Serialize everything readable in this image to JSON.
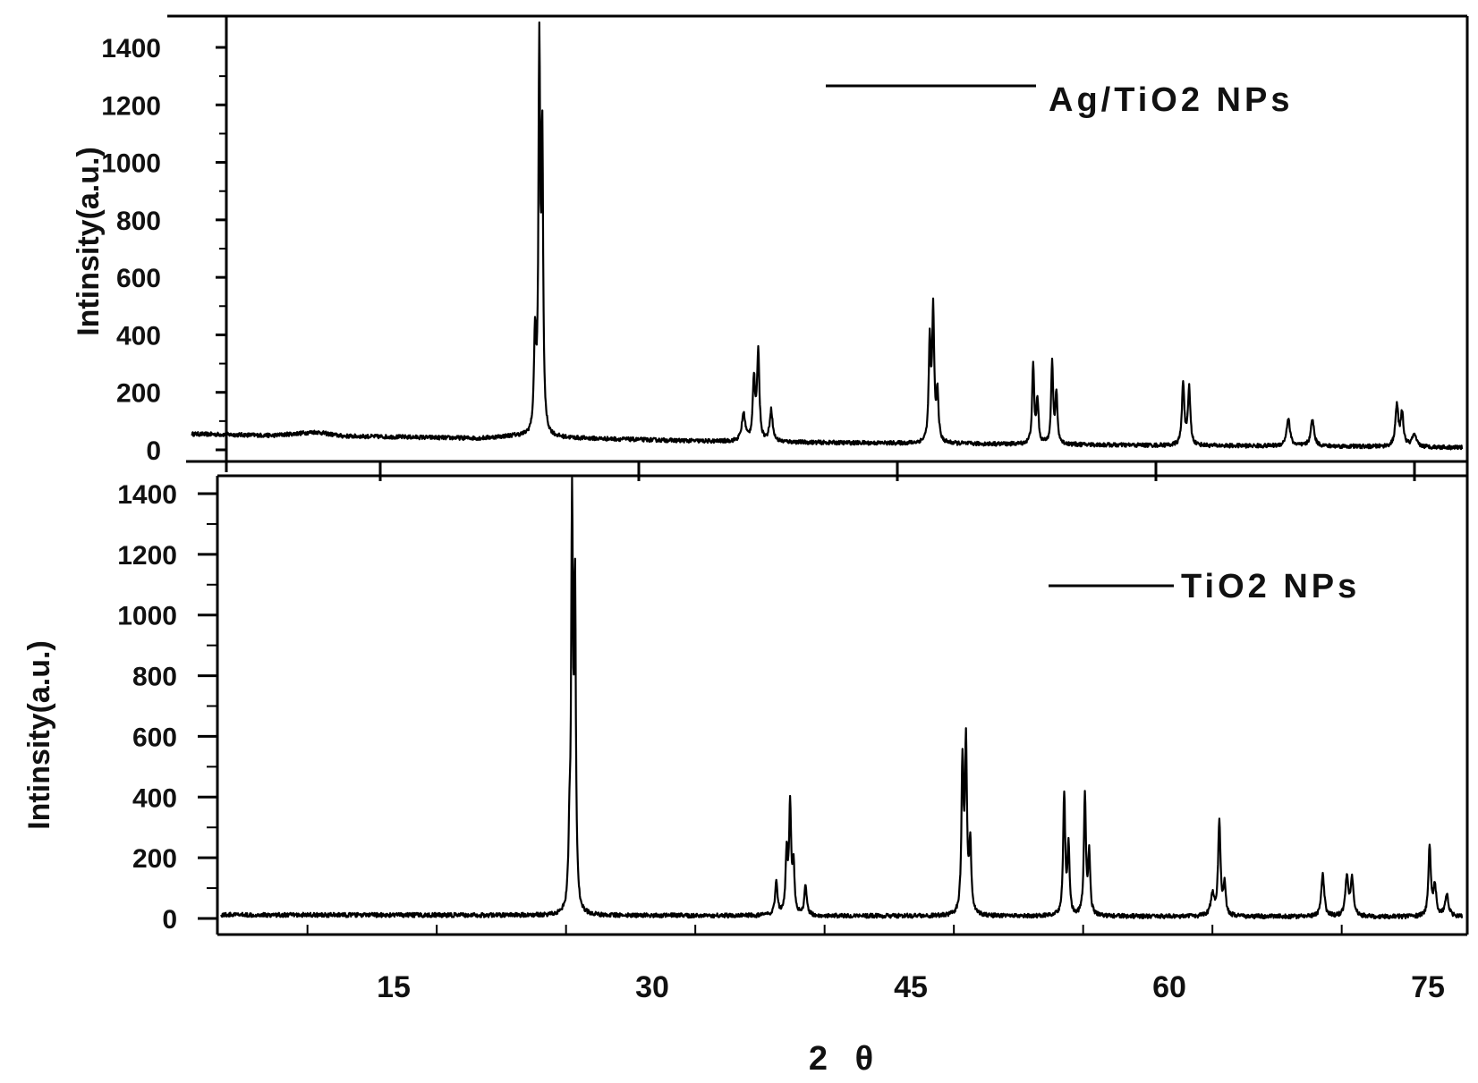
{
  "chart_data": [
    {
      "type": "line",
      "title": "",
      "xlabel": "",
      "ylabel": "Intinsity(a.u.)",
      "xlim": [
        5,
        77
      ],
      "ylim": [
        0,
        1400
      ],
      "yticks": [
        "0",
        "200",
        "400",
        "600",
        "800",
        "1000",
        "1200",
        "1400"
      ],
      "legend": {
        "position": "top-right"
      },
      "series": [
        {
          "name": "Ag/TiO2 NPs",
          "color": "#000000",
          "baseline": [
            [
              3.5,
              55
            ],
            [
              8,
              50
            ],
            [
              10.5,
              62
            ],
            [
              12,
              48
            ],
            [
              20,
              40
            ],
            [
              22,
              48
            ],
            [
              24.5,
              42
            ],
            [
              33,
              30
            ],
            [
              40,
              25
            ],
            [
              50,
              20
            ],
            [
              60,
              15
            ],
            [
              70,
              12
            ],
            [
              77,
              8
            ]
          ],
          "peaks": [
            {
              "x": 23.2,
              "y": 330,
              "w": 0.07
            },
            {
              "x": 23.45,
              "y": 1310,
              "w": 0.06
            },
            {
              "x": 23.62,
              "y": 1000,
              "w": 0.06
            },
            {
              "x": 35.3,
              "y": 95,
              "w": 0.12
            },
            {
              "x": 35.9,
              "y": 210,
              "w": 0.08
            },
            {
              "x": 36.15,
              "y": 305,
              "w": 0.08
            },
            {
              "x": 36.9,
              "y": 110,
              "w": 0.1
            },
            {
              "x": 46.1,
              "y": 340,
              "w": 0.07
            },
            {
              "x": 46.3,
              "y": 450,
              "w": 0.07
            },
            {
              "x": 46.55,
              "y": 170,
              "w": 0.07
            },
            {
              "x": 52.1,
              "y": 270,
              "w": 0.07
            },
            {
              "x": 52.35,
              "y": 150,
              "w": 0.07
            },
            {
              "x": 53.2,
              "y": 280,
              "w": 0.07
            },
            {
              "x": 53.45,
              "y": 170,
              "w": 0.07
            },
            {
              "x": 60.8,
              "y": 220,
              "w": 0.08
            },
            {
              "x": 61.15,
              "y": 200,
              "w": 0.08
            },
            {
              "x": 66.9,
              "y": 95,
              "w": 0.12
            },
            {
              "x": 68.3,
              "y": 90,
              "w": 0.12
            },
            {
              "x": 73.2,
              "y": 140,
              "w": 0.1
            },
            {
              "x": 73.5,
              "y": 110,
              "w": 0.1
            },
            {
              "x": 74.2,
              "y": 40,
              "w": 0.15
            }
          ]
        }
      ]
    },
    {
      "type": "line",
      "title": "",
      "xlabel": "2 θ",
      "ylabel": "Intinsity(a.u.)",
      "xlim": [
        5,
        77
      ],
      "ylim": [
        0,
        1400
      ],
      "xticks": [
        15,
        30,
        45,
        60,
        75
      ],
      "yticks": [
        "0",
        "200",
        "400",
        "600",
        "800",
        "1000",
        "1200",
        "1400"
      ],
      "legend": {
        "position": "top-right"
      },
      "series": [
        {
          "name": "TiO2 NPs",
          "color": "#000000",
          "baseline": [
            [
              5,
              12
            ],
            [
              77,
              5
            ]
          ],
          "peaks": [
            {
              "x": 25.2,
              "y": 200,
              "w": 0.07
            },
            {
              "x": 25.35,
              "y": 1290,
              "w": 0.06
            },
            {
              "x": 25.52,
              "y": 1040,
              "w": 0.06
            },
            {
              "x": 37.2,
              "y": 110,
              "w": 0.08
            },
            {
              "x": 37.8,
              "y": 200,
              "w": 0.07
            },
            {
              "x": 38.0,
              "y": 360,
              "w": 0.07
            },
            {
              "x": 38.2,
              "y": 150,
              "w": 0.07
            },
            {
              "x": 38.9,
              "y": 100,
              "w": 0.08
            },
            {
              "x": 48.0,
              "y": 490,
              "w": 0.07
            },
            {
              "x": 48.2,
              "y": 550,
              "w": 0.07
            },
            {
              "x": 48.45,
              "y": 230,
              "w": 0.07
            },
            {
              "x": 53.9,
              "y": 400,
              "w": 0.07
            },
            {
              "x": 54.15,
              "y": 220,
              "w": 0.07
            },
            {
              "x": 55.1,
              "y": 390,
              "w": 0.07
            },
            {
              "x": 55.35,
              "y": 200,
              "w": 0.07
            },
            {
              "x": 62.5,
              "y": 70,
              "w": 0.12
            },
            {
              "x": 62.9,
              "y": 310,
              "w": 0.08
            },
            {
              "x": 63.2,
              "y": 100,
              "w": 0.08
            },
            {
              "x": 68.9,
              "y": 140,
              "w": 0.1
            },
            {
              "x": 70.3,
              "y": 130,
              "w": 0.1
            },
            {
              "x": 70.6,
              "y": 120,
              "w": 0.1
            },
            {
              "x": 75.1,
              "y": 230,
              "w": 0.08
            },
            {
              "x": 75.4,
              "y": 100,
              "w": 0.1
            },
            {
              "x": 76.1,
              "y": 70,
              "w": 0.12
            }
          ]
        }
      ]
    }
  ]
}
